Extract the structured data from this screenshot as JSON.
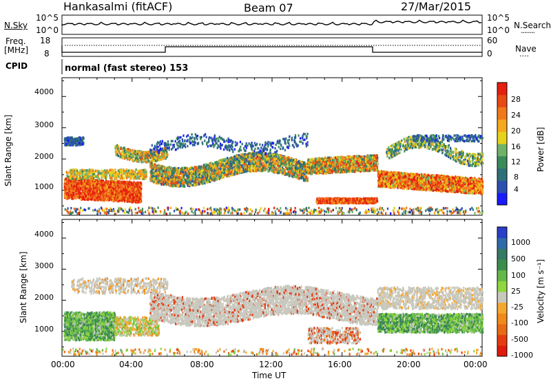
{
  "header": {
    "station": "Hankasalmi (fitACF)",
    "beam": "Beam 07",
    "date": "27/Mar/2015"
  },
  "noise_panel": {
    "left_label": "N.Sky",
    "left_ticks": [
      "10^5",
      "10^0"
    ],
    "right_ticks": [
      "10^5",
      "10^0"
    ],
    "right_label": "N.Search",
    "right_marker": "........"
  },
  "freq_panel": {
    "left_label_1": "Freq.",
    "left_label_2": "[MHz]",
    "left_ticks": [
      "18",
      "8"
    ],
    "right_ticks": [
      "60",
      "0"
    ],
    "right_label": "Nave",
    "right_marker": "...."
  },
  "cpid_panel": {
    "label": "CPID",
    "mode_text": "normal (fast stereo) 153"
  },
  "chart_data": [
    {
      "type": "heatmap",
      "ylabel": "Slant Range [km]",
      "ylim": [
        200,
        4600
      ],
      "yticks": [
        "1000",
        "2000",
        "3000",
        "4000"
      ],
      "xlim": [
        0,
        24
      ],
      "colorbar": {
        "label": "Power [dB]",
        "range": [
          0,
          32
        ],
        "ticks": [
          "4",
          "8",
          "12",
          "16",
          "20",
          "24",
          "28"
        ],
        "colors": [
          "#1a1aff",
          "#2b4fb0",
          "#2e6f7a",
          "#3a8a5a",
          "#6fb36a",
          "#e6d21a",
          "#f5a81e",
          "#f07a1a",
          "#e84a14",
          "#e61e10"
        ]
      }
    },
    {
      "type": "heatmap",
      "ylabel": "Slant Range [km]",
      "ylim": [
        200,
        4600
      ],
      "yticks": [
        "1000",
        "2000",
        "3000",
        "4000"
      ],
      "xlim": [
        0,
        24
      ],
      "xlabel": "Time UT",
      "xticks": [
        "00:00",
        "04:00",
        "08:00",
        "12:00",
        "16:00",
        "20:00",
        "00:00"
      ],
      "colorbar": {
        "label": "Velocity [m s⁻¹]",
        "ticks": [
          "1000",
          "500",
          "100",
          "25",
          "-25",
          "-100",
          "-500",
          "-1000"
        ],
        "colors": [
          "#2a3ec8",
          "#2f6aa8",
          "#357a62",
          "#3c8e4e",
          "#64b84a",
          "#8fd640",
          "#c8c8be",
          "#f5a830",
          "#f08a1a",
          "#e86a14",
          "#e63a10",
          "#e01a0c"
        ]
      }
    }
  ]
}
